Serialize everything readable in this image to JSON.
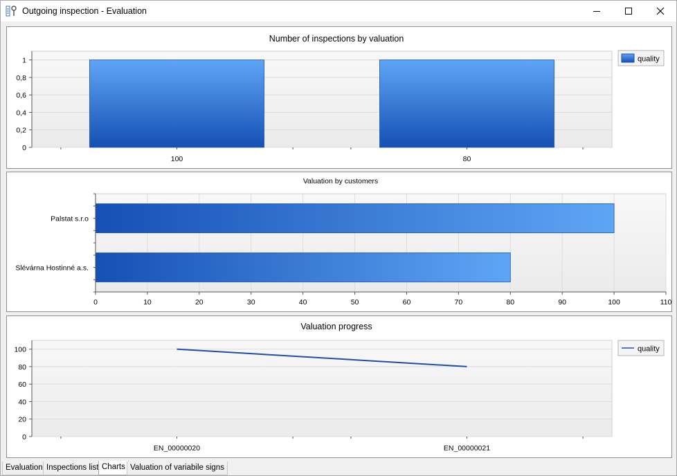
{
  "window": {
    "title": "Outgoing inspection - Evaluation",
    "controls": [
      "minimize",
      "maximize",
      "close"
    ]
  },
  "colors": {
    "bar_dark": "#1550b4",
    "bar_light": "#5fa5f5",
    "line": "#1e4fa8",
    "grid": "#dcdcdc"
  },
  "chart_data": [
    {
      "type": "bar",
      "title": "Number of inspections by valuation",
      "categories": [
        "100",
        "80"
      ],
      "series": [
        {
          "name": "quality",
          "values": [
            1,
            1
          ]
        }
      ],
      "ylim": [
        0,
        1.1
      ],
      "yticks": [
        "0",
        "0,2",
        "0,4",
        "0,6",
        "0,8",
        "1"
      ],
      "legend": "right",
      "grid": true
    },
    {
      "type": "bar",
      "orientation": "horizontal",
      "title": "Valuation by customers",
      "categories": [
        "Palstat s.r.o",
        "Slévárna Hostinné a.s."
      ],
      "values": [
        100,
        80
      ],
      "xlim": [
        0,
        110
      ],
      "xticks": [
        "0",
        "10",
        "20",
        "30",
        "40",
        "50",
        "60",
        "70",
        "80",
        "90",
        "100",
        "110"
      ],
      "grid": true
    },
    {
      "type": "line",
      "title": "Valuation progress",
      "categories": [
        "EN_00000020",
        "EN_00000021"
      ],
      "series": [
        {
          "name": "quality",
          "values": [
            100,
            80
          ]
        }
      ],
      "ylim": [
        0,
        110
      ],
      "yticks": [
        "0",
        "20",
        "40",
        "60",
        "80",
        "100"
      ],
      "legend": "right",
      "grid": true
    }
  ],
  "tabs": [
    {
      "label": "Evaluation",
      "active": false
    },
    {
      "label": "Inspections list",
      "active": false
    },
    {
      "label": "Charts",
      "active": true
    },
    {
      "label": "Valuation of variabile signs",
      "active": false
    }
  ]
}
